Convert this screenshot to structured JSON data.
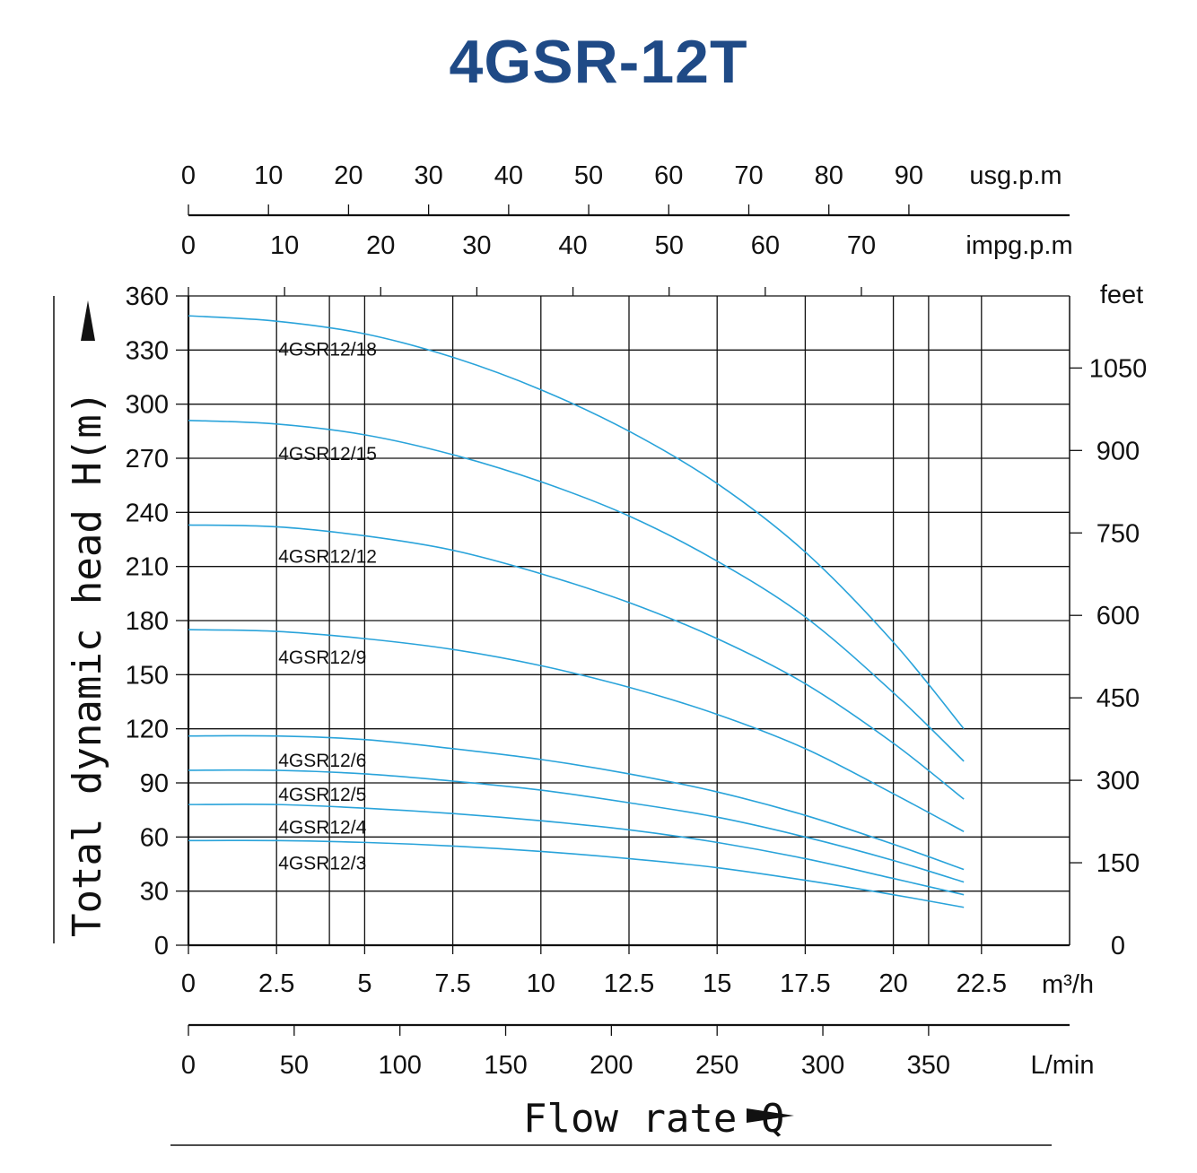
{
  "chart_data": {
    "type": "line",
    "title": "4GSR-12T",
    "xlabel": "Flow rate Q",
    "ylabel": "Total dynamic head H(m)",
    "x_unit": "m³/h",
    "y_unit": "m",
    "xlim": [
      0,
      25
    ],
    "ylim": [
      0,
      360
    ],
    "grid": true,
    "x_ticks": [
      "0",
      "2.5",
      "5",
      "7.5",
      "10",
      "12.5",
      "15",
      "17.5",
      "20",
      "22.5"
    ],
    "x_tick_values": [
      0,
      2.5,
      5,
      7.5,
      10,
      12.5,
      15,
      17.5,
      20,
      22.5
    ],
    "y_ticks": [
      "0",
      "30",
      "60",
      "90",
      "120",
      "150",
      "180",
      "210",
      "240",
      "270",
      "300",
      "330",
      "360"
    ],
    "y_tick_values": [
      0,
      30,
      60,
      90,
      120,
      150,
      180,
      210,
      240,
      270,
      300,
      330,
      360
    ],
    "extra_vertical_grid": [
      4,
      21
    ],
    "secondary_axes": {
      "usgpm": {
        "unit": "usg.p.m",
        "labels": [
          "0",
          "10",
          "20",
          "30",
          "40",
          "50",
          "60",
          "70",
          "80",
          "90"
        ],
        "values": [
          0,
          10,
          20,
          30,
          40,
          50,
          60,
          70,
          80,
          90
        ],
        "per_m3h": 4.4029
      },
      "impgpm": {
        "unit": "impg.p.m",
        "labels": [
          "0",
          "10",
          "20",
          "30",
          "40",
          "50",
          "60",
          "70"
        ],
        "values": [
          0,
          10,
          20,
          30,
          40,
          50,
          60,
          70
        ],
        "per_m3h": 3.6662
      },
      "feet": {
        "unit": "feet",
        "labels": [
          "0",
          "150",
          "300",
          "450",
          "600",
          "750",
          "900",
          "1050"
        ],
        "values": [
          0,
          150,
          300,
          450,
          600,
          750,
          900,
          1050
        ],
        "per_m": 3.2808
      },
      "lmin": {
        "unit": "L/min",
        "labels": [
          "0",
          "50",
          "100",
          "150",
          "200",
          "250",
          "300",
          "350"
        ],
        "values": [
          0,
          50,
          100,
          150,
          200,
          250,
          300,
          350
        ],
        "per_m3h": 16.6667
      }
    },
    "x": [
      0,
      2.5,
      5,
      7.5,
      10,
      12.5,
      15,
      17.5,
      20,
      22
    ],
    "series": [
      {
        "name": "4GSR12/18",
        "values": [
          349,
          346,
          339,
          326,
          308,
          285,
          256,
          218,
          168,
          120
        ],
        "label_at": [
          2.5,
          331
        ]
      },
      {
        "name": "4GSR12/15",
        "values": [
          291,
          289,
          283,
          272,
          257,
          238,
          213,
          182,
          140,
          102
        ],
        "label_at": [
          2.5,
          273
        ]
      },
      {
        "name": "4GSR12/12",
        "values": [
          233,
          232,
          227,
          219,
          206,
          190,
          170,
          145,
          112,
          81
        ],
        "label_at": [
          2.5,
          216
        ]
      },
      {
        "name": "4GSR12/9",
        "values": [
          175,
          174,
          170,
          164,
          155,
          143,
          128,
          109,
          84,
          63
        ],
        "label_at": [
          2.5,
          160
        ]
      },
      {
        "name": "4GSR12/6",
        "values": [
          116,
          116,
          114,
          109,
          103,
          95,
          85,
          72,
          56,
          42
        ],
        "label_at": [
          2.5,
          103
        ]
      },
      {
        "name": "4GSR12/5",
        "values": [
          97,
          97,
          95,
          91,
          86,
          79,
          71,
          60,
          47,
          35
        ],
        "label_at": [
          2.5,
          84
        ]
      },
      {
        "name": "4GSR12/4",
        "values": [
          78,
          78,
          76,
          73,
          69,
          64,
          57,
          48,
          37,
          28
        ],
        "label_at": [
          2.5,
          66
        ]
      },
      {
        "name": "4GSR12/3",
        "values": [
          58,
          58,
          57,
          55,
          52,
          48,
          43,
          36,
          28,
          21
        ],
        "label_at": [
          2.5,
          46
        ]
      }
    ],
    "colors": {
      "curve": "#29a3da",
      "grid": "#111111",
      "title": "#1f4a86"
    }
  }
}
